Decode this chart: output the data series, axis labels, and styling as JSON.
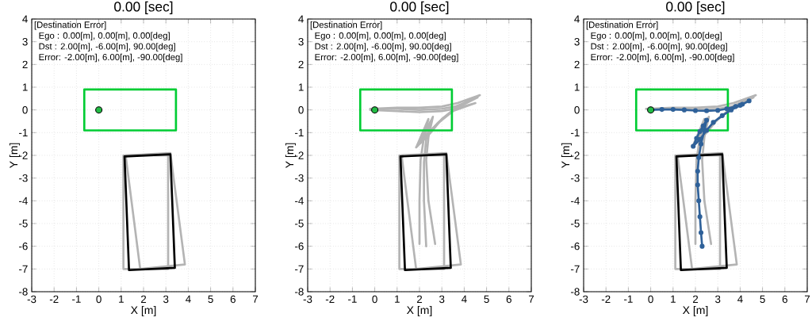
{
  "chart_data": [
    {
      "type": "line",
      "title": "0.00 [sec]",
      "xlabel": "X [m]",
      "ylabel": "Y [m]",
      "xlim": [
        -3,
        7
      ],
      "ylim": [
        -8,
        4
      ],
      "xticks": [
        -3,
        -2,
        -1,
        0,
        1,
        2,
        3,
        4,
        5,
        6,
        7
      ],
      "yticks": [
        -8,
        -7,
        -6,
        -5,
        -4,
        -3,
        -2,
        -1,
        0,
        1,
        2,
        3,
        4
      ],
      "grid": true,
      "annotations": [
        "[Destination Error]",
        "Ego  : 0.00[m], 0.00[m], 0.00[deg]",
        "Dst  : 2.00[m], -6.00[m], 90.00[deg]",
        "Error: -2.00[m], 6.00[m], -90.00[deg]"
      ],
      "series": [
        {
          "color": "#b4b4b4",
          "x": [
            1.1,
            3.1,
            3.1,
            1.1,
            1.1,
            3.1
          ],
          "values": [
            -2.0,
            -2.0,
            -7.0,
            -7.0,
            -2.0,
            -2.0
          ]
        },
        {
          "color": "#b4b4b4",
          "x": [
            1.2,
            3.2,
            3.85,
            1.85,
            1.2,
            3.2
          ],
          "values": [
            -2.0,
            -1.9,
            -6.8,
            -7.0,
            -2.0,
            -1.9
          ]
        },
        {
          "color": "#00cc33",
          "x": [
            -0.65,
            3.45,
            3.45,
            -0.65,
            -0.65,
            3.45
          ],
          "values": [
            0.9,
            0.9,
            -0.9,
            -0.9,
            0.9,
            0.9
          ]
        },
        {
          "color": "#000000",
          "x": [
            1.15,
            3.2,
            3.4,
            1.35,
            1.15,
            3.2
          ],
          "values": [
            -2.05,
            -1.95,
            -6.95,
            -7.05,
            -2.05,
            -1.95
          ]
        },
        {
          "type": "scatter",
          "marker": "circle",
          "color": "#22bb44",
          "x": [
            0
          ],
          "values": [
            0
          ]
        }
      ]
    },
    {
      "type": "line",
      "title": "0.00 [sec]",
      "xlabel": "X [m]",
      "ylabel": "Y [m]",
      "xlim": [
        -3,
        7
      ],
      "ylim": [
        -8,
        4
      ],
      "xticks": [
        -3,
        -2,
        -1,
        0,
        1,
        2,
        3,
        4,
        5,
        6,
        7
      ],
      "yticks": [
        -8,
        -7,
        -6,
        -5,
        -4,
        -3,
        -2,
        -1,
        0,
        1,
        2,
        3,
        4
      ],
      "grid": true,
      "annotations": [
        "[Destination Error]",
        "Ego  : 0.00[m], 0.00[m], 0.00[deg]",
        "Dst  : 2.00[m], -6.00[m], 90.00[deg]",
        "Error: -2.00[m], 6.00[m], -90.00[deg]"
      ],
      "series": [
        {
          "color": "#b4b4b4",
          "x": [
            1.1,
            3.1,
            3.1,
            1.1,
            1.1,
            3.1
          ],
          "values": [
            -2.0,
            -2.0,
            -7.0,
            -7.0,
            -2.0,
            -2.0
          ]
        },
        {
          "color": "#b4b4b4",
          "x": [
            1.2,
            3.2,
            3.85,
            1.85,
            1.2,
            3.2
          ],
          "values": [
            -2.0,
            -1.9,
            -6.8,
            -7.0,
            -2.0,
            -1.9
          ]
        },
        {
          "color": "#b4b4b4",
          "x": [
            -0.2,
            1,
            2,
            3,
            3.6,
            4.6,
            3.6,
            2.9,
            2.3,
            1.9,
            2.4,
            2.2,
            2.05,
            2.0,
            2.0
          ],
          "values": [
            0.05,
            0.05,
            0,
            0.05,
            0.15,
            0.55,
            0.05,
            -0.5,
            -1.1,
            -1.55,
            -0.4,
            -1.2,
            -2.2,
            -4,
            -5.9
          ]
        },
        {
          "color": "#b4b4b4",
          "x": [
            -0.2,
            1,
            2,
            3,
            3.7,
            4.7,
            3.7,
            3.0,
            2.5,
            2.05,
            2.6,
            2.4,
            2.3,
            2.4,
            2.7
          ],
          "values": [
            0.05,
            0.1,
            0.1,
            0.15,
            0.3,
            0.65,
            0.15,
            -0.4,
            -1.0,
            -1.45,
            -0.3,
            -1.2,
            -2.2,
            -4,
            -5.9
          ]
        },
        {
          "color": "#b4b4b4",
          "x": [
            -0.2,
            1,
            2,
            3,
            3.6,
            4.5,
            3.5,
            2.8,
            2.3,
            1.85,
            2.5,
            2.3,
            2.2,
            2.2,
            2.3
          ],
          "values": [
            0,
            -0.05,
            -0.1,
            -0.05,
            0.05,
            0.3,
            -0.05,
            -0.6,
            -1.2,
            -1.65,
            -0.5,
            -1.3,
            -2.3,
            -4,
            -6.0
          ]
        },
        {
          "color": "#00cc33",
          "x": [
            -0.65,
            3.45,
            3.45,
            -0.65,
            -0.65,
            3.45
          ],
          "values": [
            0.9,
            0.9,
            -0.9,
            -0.9,
            0.9,
            0.9
          ]
        },
        {
          "color": "#000000",
          "x": [
            1.15,
            3.2,
            3.4,
            1.35,
            1.15,
            3.2
          ],
          "values": [
            -2.05,
            -1.95,
            -6.95,
            -7.05,
            -2.05,
            -1.95
          ]
        },
        {
          "type": "scatter",
          "marker": "circle",
          "color": "#22bb44",
          "x": [
            0
          ],
          "values": [
            0
          ]
        }
      ]
    },
    {
      "type": "line",
      "title": "0.00 [sec]",
      "xlabel": "X [m]",
      "ylabel": "Y [m]",
      "xlim": [
        -3,
        7
      ],
      "ylim": [
        -8,
        4
      ],
      "xticks": [
        -3,
        -2,
        -1,
        0,
        1,
        2,
        3,
        4,
        5,
        6,
        7
      ],
      "yticks": [
        -8,
        -7,
        -6,
        -5,
        -4,
        -3,
        -2,
        -1,
        0,
        1,
        2,
        3,
        4
      ],
      "grid": true,
      "annotations": [
        "[Destination Error]",
        "Ego  : 0.00[m], 0.00[m], 0.00[deg]",
        "Dst  : 2.00[m], -6.00[m], 90.00[deg]",
        "Error: -2.00[m], 6.00[m], -90.00[deg]"
      ],
      "series": [
        {
          "color": "#b4b4b4",
          "x": [
            1.1,
            3.1,
            3.1,
            1.1,
            1.1,
            3.1
          ],
          "values": [
            -2.0,
            -2.0,
            -7.0,
            -7.0,
            -2.0,
            -2.0
          ]
        },
        {
          "color": "#b4b4b4",
          "x": [
            1.2,
            3.2,
            3.85,
            1.85,
            1.2,
            3.2
          ],
          "values": [
            -2.0,
            -1.9,
            -6.8,
            -7.0,
            -2.0,
            -1.9
          ]
        },
        {
          "color": "#b4b4b4",
          "x": [
            -0.2,
            1,
            2,
            3,
            3.6,
            4.6,
            3.6,
            2.9,
            2.3,
            1.9,
            2.4,
            2.2,
            2.05,
            2.0,
            2.0
          ],
          "values": [
            0.05,
            0.05,
            0,
            0.05,
            0.15,
            0.55,
            0.05,
            -0.5,
            -1.1,
            -1.55,
            -0.4,
            -1.2,
            -2.2,
            -4,
            -5.9
          ]
        },
        {
          "color": "#b4b4b4",
          "x": [
            -0.2,
            1,
            2,
            3,
            3.7,
            4.7,
            3.7,
            3.0,
            2.5,
            2.05,
            2.6,
            2.4,
            2.3,
            2.4,
            2.7
          ],
          "values": [
            0.05,
            0.1,
            0.1,
            0.15,
            0.3,
            0.65,
            0.15,
            -0.4,
            -1.0,
            -1.45,
            -0.3,
            -1.2,
            -2.2,
            -4,
            -5.9
          ]
        },
        {
          "color": "#00cc33",
          "x": [
            -0.65,
            3.45,
            3.45,
            -0.65,
            -0.65,
            3.45
          ],
          "values": [
            0.9,
            0.9,
            -0.9,
            -0.9,
            0.9,
            0.9
          ]
        },
        {
          "color": "#000000",
          "x": [
            1.15,
            3.2,
            3.4,
            1.35,
            1.15,
            3.2
          ],
          "values": [
            -2.05,
            -1.95,
            -6.95,
            -7.05,
            -2.05,
            -1.95
          ]
        },
        {
          "color": "#2f6199",
          "marker": "circle",
          "x": [
            0,
            0.5,
            1,
            1.5,
            2,
            2.5,
            3,
            3.4,
            3.8,
            4.1,
            4.4,
            4.0,
            3.6,
            3.2,
            2.8,
            2.5,
            2.2,
            1.9,
            2.05,
            2.2,
            2.35,
            2.5,
            2.4,
            2.25,
            2.15,
            2.1,
            2.1,
            2.15,
            2.2,
            2.25,
            2.3
          ],
          "values": [
            0,
            0.02,
            0.02,
            0,
            -0.03,
            -0.04,
            -0.02,
            0.05,
            0.15,
            0.25,
            0.4,
            0.2,
            0,
            -0.25,
            -0.55,
            -0.9,
            -1.3,
            -1.6,
            -1.25,
            -0.95,
            -0.7,
            -0.45,
            -0.9,
            -1.5,
            -2.1,
            -2.7,
            -3.3,
            -4,
            -4.7,
            -5.4,
            -6
          ]
        },
        {
          "type": "scatter",
          "marker": "circle",
          "color": "#22bb44",
          "x": [
            0
          ],
          "values": [
            0
          ]
        }
      ]
    }
  ]
}
